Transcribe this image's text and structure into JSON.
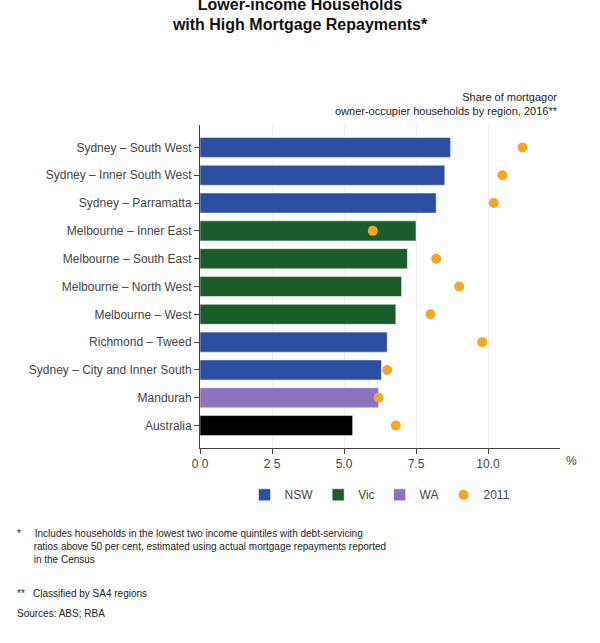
{
  "chart_data": {
    "type": "bar",
    "orientation": "horizontal",
    "title": "Lower-income Households\nwith High Mortgage Repayments*",
    "subtitle": "Share of mortgagor\nowner-occupier households by region, 2016**",
    "xlabel": "%",
    "categories": [
      "Sydney – South West",
      "Sydney – Inner South West",
      "Sydney – Parramatta",
      "Melbourne – Inner East",
      "Melbourne – South East",
      "Melbourne – North West",
      "Melbourne – West",
      "Richmond – Tweed",
      "Sydney – City and Inner South",
      "Mandurah",
      "Australia"
    ],
    "series": [
      {
        "name": "NSW",
        "color": "#2d4fa1",
        "values": [
          8.7,
          8.5,
          8.2,
          null,
          null,
          null,
          null,
          6.5,
          6.3,
          null,
          null
        ]
      },
      {
        "name": "Vic",
        "color": "#1a5c2a",
        "values": [
          null,
          null,
          null,
          7.5,
          7.2,
          7.0,
          6.8,
          null,
          null,
          null,
          null
        ]
      },
      {
        "name": "WA",
        "color": "#8b73c0",
        "values": [
          null,
          null,
          null,
          null,
          null,
          null,
          null,
          null,
          null,
          6.2,
          null
        ]
      },
      {
        "color": "#000000",
        "values": [
          null,
          null,
          null,
          null,
          null,
          null,
          null,
          null,
          null,
          null,
          5.3
        ]
      },
      {
        "name": "2011",
        "type": "scatter",
        "marker": "circle",
        "color": "#f5a623",
        "values": [
          11.2,
          10.5,
          10.2,
          6.0,
          8.2,
          9.0,
          8.0,
          9.8,
          6.5,
          6.2,
          6.8
        ]
      }
    ],
    "xlim": [
      0,
      12.5
    ],
    "xticks": [
      {
        "value": 0,
        "label": "0 0"
      },
      {
        "value": 2.5,
        "label": "2 5"
      },
      {
        "value": 5.0,
        "label": "5.0"
      },
      {
        "value": 7.5,
        "label": "7.5"
      },
      {
        "value": 10.0,
        "label": "10.0"
      }
    ],
    "grid": true,
    "legend": "bottom",
    "footnotes": [
      "*     Includes households in the lowest two income quintiles with debt-servicing\n      ratios above 50 per cent, estimated using actual mortgage repayments reported\n      in the Census",
      "**   Classified by SA4 regions",
      "Sources: ABS; RBA"
    ]
  }
}
